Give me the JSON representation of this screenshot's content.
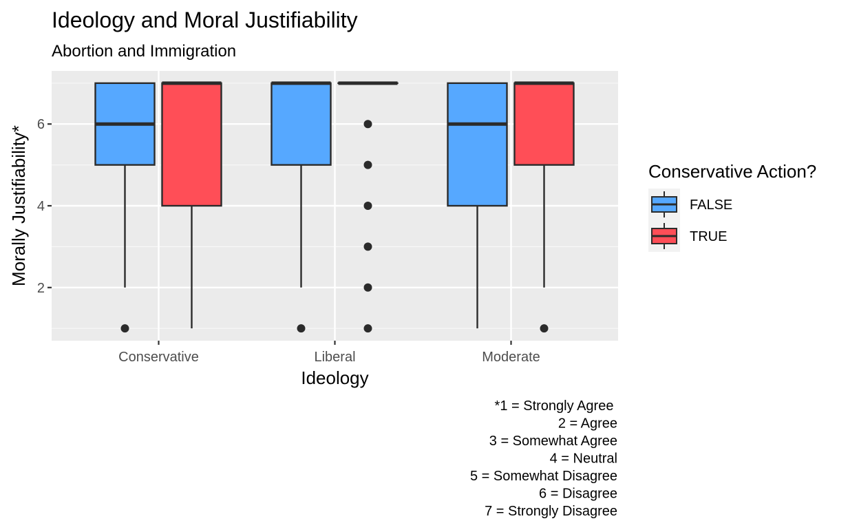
{
  "chart_data": {
    "type": "boxplot",
    "title": "Ideology and Moral Justifiability",
    "subtitle": "Abortion and Immigration",
    "xlabel": "Ideology",
    "ylabel": "Morally Justifiability*",
    "ylim": [
      0.7,
      7.3
    ],
    "y_ticks": [
      2,
      4,
      6
    ],
    "categories": [
      "Conservative",
      "Liberal",
      "Moderate"
    ],
    "grid": true,
    "legend": {
      "title": "Conservative Action?",
      "position": "right",
      "entries": [
        {
          "label": "FALSE",
          "color": "#56A8FF"
        },
        {
          "label": "TRUE",
          "color": "#FF4E57"
        }
      ]
    },
    "series": [
      {
        "name": "FALSE",
        "color": "#56A8FF",
        "boxes": [
          {
            "category": "Conservative",
            "whisker_low": 2,
            "q1": 5,
            "median": 6,
            "q3": 7,
            "whisker_high": 7,
            "outliers": [
              1
            ]
          },
          {
            "category": "Liberal",
            "whisker_low": 2,
            "q1": 5,
            "median": 7,
            "q3": 7,
            "whisker_high": 7,
            "outliers": [
              1
            ]
          },
          {
            "category": "Moderate",
            "whisker_low": 1,
            "q1": 4,
            "median": 6,
            "q3": 7,
            "whisker_high": 7,
            "outliers": []
          }
        ]
      },
      {
        "name": "TRUE",
        "color": "#FF4E57",
        "boxes": [
          {
            "category": "Conservative",
            "whisker_low": 1,
            "q1": 4,
            "median": 7,
            "q3": 7,
            "whisker_high": 7,
            "outliers": []
          },
          {
            "category": "Liberal",
            "whisker_low": 7,
            "q1": 7,
            "median": 7,
            "q3": 7,
            "whisker_high": 7,
            "outliers": [
              1,
              2,
              3,
              4,
              5,
              6
            ]
          },
          {
            "category": "Moderate",
            "whisker_low": 2,
            "q1": 5,
            "median": 7,
            "q3": 7,
            "whisker_high": 7,
            "outliers": [
              1
            ]
          }
        ]
      }
    ],
    "caption_lines": [
      "*1 = Strongly Agree ",
      "2 = Agree",
      "3 = Somewhat Agree",
      "4 = Neutral",
      "5 = Somewhat Disagree",
      "6 = Disagree",
      "7 = Strongly Disagree"
    ]
  }
}
